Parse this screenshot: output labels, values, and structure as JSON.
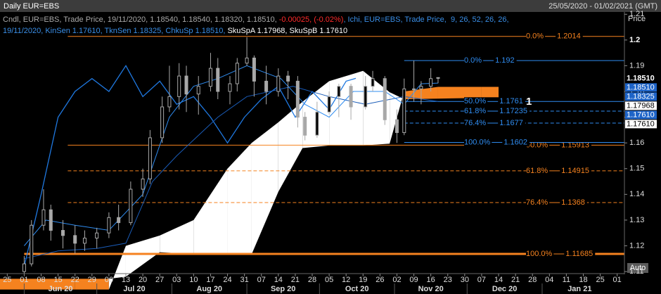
{
  "header": {
    "title": "Daily EUR=EBS",
    "range": "25/05/2020 - 01/02/2021 (GMT)"
  },
  "chart_data": {
    "type": "candlestick",
    "axis_title": "Price",
    "button": "Auto",
    "annotation": "1",
    "legend": {
      "candle": "Cndl, EUR=EBS, Trade Price, 19/11/2020, 1.18540, 1.18540, 1.18320, 1.18510, ",
      "change": "-0.00025, (-0.02%)",
      "ichi": ", Ichi, EUR=EBS, Trade Price,  9, 26, 52, 26, 26,",
      "ichi_values": "19/11/2020, KinSen 1.17610, TknSen 1.18325, ChkuSp 1.18510, ",
      "span_values": "SkuSpA 1.17968, SkuSpB 1.17610"
    },
    "xlim": [
      "2020-05-22",
      "2021-02-04"
    ],
    "ylim": [
      1.1092,
      1.2109
    ],
    "yticks": [
      1.11,
      1.12,
      1.13,
      1.14,
      1.15,
      1.16,
      1.17,
      1.18,
      1.19,
      1.2,
      1.21
    ],
    "bold_ytick": 1.2,
    "xticks": [
      {
        "value": "2020-05-25",
        "label": "25"
      },
      {
        "value": "2020-06-01",
        "label": "01"
      },
      {
        "value": "2020-06-08",
        "label": "08"
      },
      {
        "value": "2020-06-15",
        "label": "15"
      },
      {
        "value": "2020-06-22",
        "label": "22"
      },
      {
        "value": "2020-06-29",
        "label": "29"
      },
      {
        "value": "2020-07-06",
        "label": "06"
      },
      {
        "value": "2020-07-13",
        "label": "13"
      },
      {
        "value": "2020-07-20",
        "label": "20"
      },
      {
        "value": "2020-07-27",
        "label": "27"
      },
      {
        "value": "2020-08-03",
        "label": "03"
      },
      {
        "value": "2020-08-10",
        "label": "10"
      },
      {
        "value": "2020-08-17",
        "label": "17"
      },
      {
        "value": "2020-08-24",
        "label": "24"
      },
      {
        "value": "2020-08-31",
        "label": "31"
      },
      {
        "value": "2020-09-07",
        "label": "07"
      },
      {
        "value": "2020-09-14",
        "label": "14"
      },
      {
        "value": "2020-09-21",
        "label": "21"
      },
      {
        "value": "2020-09-28",
        "label": "28"
      },
      {
        "value": "2020-10-05",
        "label": "05"
      },
      {
        "value": "2020-10-12",
        "label": "12"
      },
      {
        "value": "2020-10-19",
        "label": "19"
      },
      {
        "value": "2020-10-26",
        "label": "26"
      },
      {
        "value": "2020-11-02",
        "label": "02"
      },
      {
        "value": "2020-11-09",
        "label": "09"
      },
      {
        "value": "2020-11-16",
        "label": "16"
      },
      {
        "value": "2020-11-23",
        "label": "23"
      },
      {
        "value": "2020-11-30",
        "label": "30"
      },
      {
        "value": "2020-12-07",
        "label": "07"
      },
      {
        "value": "2020-12-14",
        "label": "14"
      },
      {
        "value": "2020-12-21",
        "label": "21"
      },
      {
        "value": "2020-12-28",
        "label": "28"
      },
      {
        "value": "2021-01-04",
        "label": "04"
      },
      {
        "value": "2021-01-11",
        "label": "11"
      },
      {
        "value": "2021-01-18",
        "label": "18"
      },
      {
        "value": "2021-01-25",
        "label": "25"
      },
      {
        "value": "2021-02-01",
        "label": "01"
      }
    ],
    "months": [
      {
        "value": "2020-06-01",
        "label": "Jun 20"
      },
      {
        "value": "2020-07-01",
        "label": "Jul 20"
      },
      {
        "value": "2020-08-01",
        "label": "Aug 20"
      },
      {
        "value": "2020-09-01",
        "label": "Sep 20"
      },
      {
        "value": "2020-10-01",
        "label": "Oct 20"
      },
      {
        "value": "2020-11-01",
        "label": "Nov 20"
      },
      {
        "value": "2020-12-01",
        "label": "Dec 20"
      },
      {
        "value": "2021-01-01",
        "label": "Jan 21"
      }
    ],
    "candle_color": "#a8a8a8",
    "candles": {
      "x": [
        "2020-06-01",
        "2020-06-04",
        "2020-06-09",
        "2020-06-12",
        "2020-06-17",
        "2020-06-22",
        "2020-06-26",
        "2020-07-01",
        "2020-07-06",
        "2020-07-10",
        "2020-07-15",
        "2020-07-20",
        "2020-07-23",
        "2020-07-28",
        "2020-07-31",
        "2020-08-04",
        "2020-08-07",
        "2020-08-12",
        "2020-08-17",
        "2020-08-20",
        "2020-08-25",
        "2020-08-28",
        "2020-09-01",
        "2020-09-04",
        "2020-09-09",
        "2020-09-14",
        "2020-09-18",
        "2020-09-22",
        "2020-09-25",
        "2020-09-30",
        "2020-10-05",
        "2020-10-09",
        "2020-10-14",
        "2020-10-20",
        "2020-10-23",
        "2020-10-28",
        "2020-11-02",
        "2020-11-05",
        "2020-11-09",
        "2020-11-12",
        "2020-11-16",
        "2020-11-19"
      ],
      "open": [
        1.11,
        1.113,
        1.128,
        1.134,
        1.126,
        1.124,
        1.121,
        1.123,
        1.125,
        1.131,
        1.129,
        1.142,
        1.146,
        1.162,
        1.174,
        1.178,
        1.186,
        1.179,
        1.182,
        1.189,
        1.18,
        1.183,
        1.191,
        1.193,
        1.184,
        1.18,
        1.186,
        1.184,
        1.17,
        1.163,
        1.172,
        1.178,
        1.182,
        1.174,
        1.182,
        1.185,
        1.169,
        1.164,
        1.181,
        1.181,
        1.182,
        1.1854
      ],
      "high": [
        1.116,
        1.13,
        1.142,
        1.136,
        1.13,
        1.128,
        1.126,
        1.127,
        1.133,
        1.136,
        1.145,
        1.15,
        1.165,
        1.178,
        1.19,
        1.191,
        1.19,
        1.186,
        1.195,
        1.193,
        1.186,
        1.193,
        1.2011,
        1.194,
        1.19,
        1.189,
        1.188,
        1.186,
        1.172,
        1.176,
        1.18,
        1.183,
        1.183,
        1.186,
        1.188,
        1.186,
        1.173,
        1.185,
        1.192,
        1.184,
        1.189,
        1.1854
      ],
      "low": [
        1.109,
        1.112,
        1.126,
        1.122,
        1.119,
        1.117,
        1.118,
        1.119,
        1.123,
        1.126,
        1.128,
        1.139,
        1.144,
        1.16,
        1.172,
        1.173,
        1.172,
        1.171,
        1.18,
        1.177,
        1.175,
        1.18,
        1.19,
        1.178,
        1.175,
        1.178,
        1.177,
        1.166,
        1.161,
        1.162,
        1.171,
        1.17,
        1.169,
        1.173,
        1.18,
        1.167,
        1.16,
        1.163,
        1.176,
        1.175,
        1.18,
        1.1832
      ],
      "close": [
        1.113,
        1.128,
        1.134,
        1.126,
        1.124,
        1.121,
        1.123,
        1.125,
        1.131,
        1.129,
        1.142,
        1.146,
        1.162,
        1.174,
        1.178,
        1.186,
        1.179,
        1.182,
        1.189,
        1.18,
        1.183,
        1.191,
        1.193,
        1.184,
        1.18,
        1.186,
        1.184,
        1.17,
        1.163,
        1.172,
        1.178,
        1.182,
        1.174,
        1.182,
        1.185,
        1.169,
        1.164,
        1.181,
        1.181,
        1.182,
        1.185,
        1.1851
      ]
    },
    "cloud": {
      "bull_color": "#ffffff",
      "bear_color": "#f5821f",
      "x": [
        "2020-05-22",
        "2020-06-22",
        "2020-07-06",
        "2020-07-13",
        "2020-07-27",
        "2020-08-10",
        "2020-08-24",
        "2020-09-03",
        "2020-09-14",
        "2020-09-24",
        "2020-10-05",
        "2020-10-19",
        "2020-10-30",
        "2020-11-05",
        "2020-11-19",
        "2020-12-07",
        "2020-12-14"
      ],
      "spanA": [
        1.103,
        1.103,
        1.103,
        1.12,
        1.124,
        1.13,
        1.15,
        1.16,
        1.168,
        1.176,
        1.184,
        1.188,
        1.1797,
        1.177,
        1.1772,
        1.1775,
        1.1775
      ],
      "spanB": [
        1.1072,
        1.1072,
        1.1072,
        1.108,
        1.1175,
        1.1168,
        1.1168,
        1.1168,
        1.141,
        1.158,
        1.159,
        1.159,
        1.1597,
        1.18,
        1.1818,
        1.1818,
        1.1818
      ]
    },
    "lines": [
      {
        "color": "#1f78e0",
        "width": 1.3,
        "x": [
          "2020-06-01",
          "2020-06-08",
          "2020-06-15",
          "2020-06-22",
          "2020-06-29",
          "2020-07-06",
          "2020-07-13",
          "2020-07-20",
          "2020-07-27",
          "2020-08-03",
          "2020-08-10",
          "2020-08-17",
          "2020-08-24",
          "2020-08-31",
          "2020-09-07",
          "2020-09-14",
          "2020-09-21",
          "2020-09-28",
          "2020-10-05",
          "2020-10-12",
          "2020-10-16"
        ],
        "values": [
          1.112,
          1.14,
          1.17,
          1.18,
          1.185,
          1.18,
          1.19,
          1.178,
          1.184,
          1.175,
          1.178,
          1.17,
          1.16,
          1.17,
          1.177,
          1.182,
          1.17,
          1.18,
          1.173,
          1.184,
          1.1851
        ]
      },
      {
        "color": "#1a5cb8",
        "width": 1,
        "x": [
          "2020-06-01",
          "2020-06-15",
          "2020-07-01",
          "2020-07-13",
          "2020-07-24",
          "2020-08-03",
          "2020-08-20",
          "2020-09-01",
          "2020-09-20",
          "2020-10-05",
          "2020-10-20",
          "2020-11-05",
          "2020-11-19"
        ],
        "values": [
          1.115,
          1.118,
          1.119,
          1.121,
          1.145,
          1.155,
          1.17,
          1.178,
          1.182,
          1.178,
          1.175,
          1.178,
          1.1761
        ]
      },
      {
        "color": "#2f8cf0",
        "width": 1,
        "x": [
          "2020-06-01",
          "2020-06-10",
          "2020-06-22",
          "2020-07-06",
          "2020-07-20",
          "2020-07-31",
          "2020-08-10",
          "2020-08-20",
          "2020-09-01",
          "2020-09-15",
          "2020-09-25",
          "2020-10-05",
          "2020-10-15",
          "2020-10-28",
          "2020-11-05",
          "2020-11-12",
          "2020-11-19"
        ],
        "values": [
          1.12,
          1.13,
          1.128,
          1.126,
          1.14,
          1.17,
          1.182,
          1.185,
          1.19,
          1.185,
          1.175,
          1.17,
          1.18,
          1.18,
          1.175,
          1.183,
          1.18325
        ]
      }
    ],
    "fib_sets": [
      {
        "color": "#f5821f",
        "end": "2021-02-04",
        "levels": [
          {
            "label": "0.0%",
            "value": 1.2014,
            "start": "2020-06-19",
            "dash": false,
            "width": 1
          },
          {
            "label": "50.0%",
            "value": 1.15913,
            "start": "2020-06-19",
            "dash": false,
            "width": 1
          },
          {
            "label": "61.8%",
            "value": 1.14915,
            "start": "2020-06-19",
            "dash": true,
            "width": 1
          },
          {
            "label": "76.4%",
            "value": 1.1368,
            "start": "2020-06-19",
            "dash": true,
            "width": 1
          },
          {
            "label": "100.0%",
            "value": 1.11685,
            "start": "2020-06-01",
            "dash": false,
            "width": 3
          }
        ]
      },
      {
        "color": "#2f8cf0",
        "end": "2021-02-04",
        "levels": [
          {
            "label": "0.0%",
            "value": 1.192,
            "start": "2020-11-05",
            "dash": false,
            "width": 1
          },
          {
            "label": "50.0%",
            "value": 1.1761,
            "start": "2020-11-05",
            "dash": false,
            "width": 1
          },
          {
            "label": "61.8%",
            "value": 1.17235,
            "start": "2020-11-05",
            "dash": true,
            "width": 1
          },
          {
            "label": "76.4%",
            "value": 1.1677,
            "start": "2020-11-05",
            "dash": true,
            "width": 1
          },
          {
            "label": "100.0%",
            "value": 1.1602,
            "start": "2020-11-05",
            "dash": false,
            "width": 1
          }
        ]
      }
    ],
    "price_tags": [
      {
        "value": 1.1851,
        "label": "1.18510",
        "bg": "#000000",
        "fg": "#ffffff",
        "bold": true
      },
      {
        "value": 1.1851,
        "label": "1.18510",
        "bg": "#1e64c8",
        "fg": "#ffffff",
        "bold": false
      },
      {
        "value": 1.18325,
        "label": "1.18325",
        "bg": "#1e64c8",
        "fg": "#ffffff",
        "bold": false
      },
      {
        "value": 1.17968,
        "label": "1.17968",
        "bg": "#ffffff",
        "fg": "#000000",
        "bold": false
      },
      {
        "value": 1.1761,
        "label": "1.17610",
        "bg": "#1e64c8",
        "fg": "#ffffff",
        "bold": false
      },
      {
        "value": 1.1761,
        "label": "1.17610",
        "bg": "#ffffff",
        "fg": "#000000",
        "bold": false
      }
    ]
  }
}
